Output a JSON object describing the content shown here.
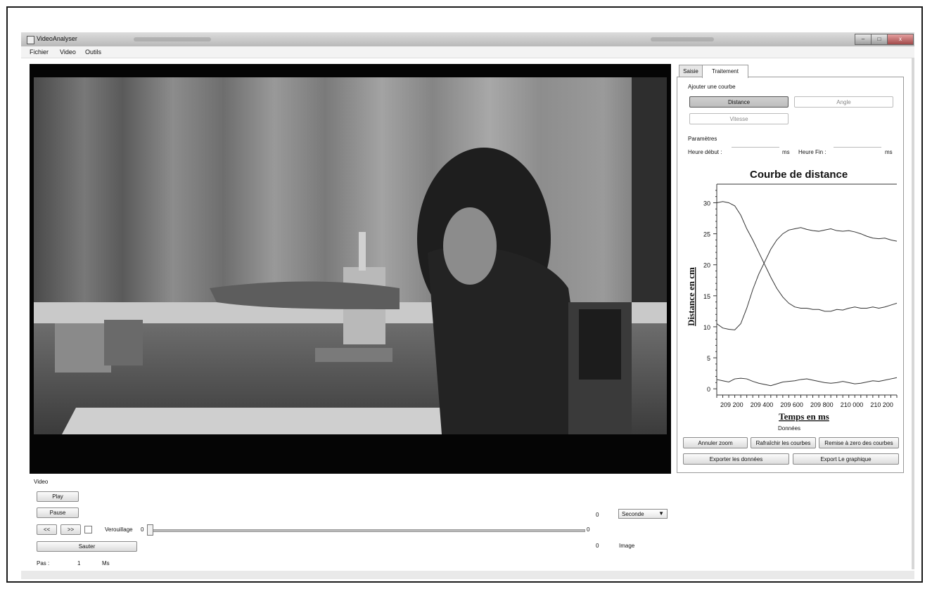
{
  "window": {
    "title": "VideoAnalyser",
    "buttons": {
      "minimize": "–",
      "maximize": "□",
      "close": "x"
    }
  },
  "menu": {
    "items": [
      "Fichier",
      "Video",
      "Outils"
    ]
  },
  "tabs": [
    "Saisie",
    "Traitement"
  ],
  "traitement": {
    "add_curve_label": "Ajouter une courbe",
    "buttons": {
      "distance": "Distance",
      "angle": "Angle",
      "vitesse": "Vitesse"
    },
    "params_label": "Paramètres",
    "start_label": "Heure début :",
    "end_label": "Heure Fin :",
    "start_unit": "ms",
    "end_unit": "ms",
    "data_label": "Données",
    "actions": {
      "cancel_zoom": "Annuler zoom",
      "refresh": "Rafraîchir les courbes",
      "reset": "Remise à zero des courbes",
      "export_data": "Exporter les données",
      "export_graph": "Export Le graphique"
    }
  },
  "chart_data": {
    "type": "line",
    "title": "Courbe de distance",
    "xlabel": "Temps en ms",
    "ylabel": "Distance en cm",
    "ylim": [
      -1,
      33
    ],
    "y_ticks": [
      0,
      5,
      10,
      15,
      20,
      25,
      30
    ],
    "x_tick_labels": [
      "209 200",
      "209 400",
      "209 600",
      "209 800",
      "210 000",
      "210 200"
    ],
    "x": [
      209100,
      209140,
      209180,
      209220,
      209260,
      209300,
      209340,
      209380,
      209420,
      209460,
      209500,
      209540,
      209580,
      209620,
      209660,
      209700,
      209740,
      209780,
      209820,
      209860,
      209900,
      209940,
      209980,
      210020,
      210060,
      210100,
      210140,
      210180,
      210220,
      210260,
      210300
    ],
    "x_range": [
      209100,
      210300
    ],
    "grid": false,
    "series": [
      {
        "values": [
          30,
          30.2,
          30,
          29.5,
          28,
          25.8,
          24,
          22,
          20,
          18,
          16.2,
          14.8,
          13.8,
          13.2,
          13,
          13,
          12.8,
          12.8,
          12.5,
          12.5,
          12.8,
          12.7,
          13,
          13.2,
          13,
          13,
          13.2,
          13,
          13.2,
          13.5,
          13.8
        ]
      },
      {
        "values": [
          10.5,
          9.8,
          9.6,
          9.5,
          10.5,
          13,
          16,
          18.5,
          20.5,
          22.5,
          24,
          25,
          25.6,
          25.8,
          26,
          25.7,
          25.5,
          25.4,
          25.6,
          25.8,
          25.5,
          25.4,
          25.5,
          25.3,
          25,
          24.6,
          24.3,
          24.2,
          24.3,
          24,
          23.8
        ]
      },
      {
        "values": [
          1.5,
          1.3,
          1.1,
          1.6,
          1.7,
          1.6,
          1.2,
          0.9,
          0.7,
          0.5,
          0.8,
          1.1,
          1.2,
          1.3,
          1.5,
          1.6,
          1.4,
          1.2,
          1.0,
          0.9,
          1.0,
          1.2,
          1.0,
          0.8,
          0.9,
          1.1,
          1.3,
          1.2,
          1.4,
          1.6,
          1.8
        ]
      }
    ]
  },
  "video_controls": {
    "section_label": "Video",
    "play": "Play",
    "pause": "Pause",
    "prev": "<<",
    "next": ">>",
    "lock_label": "Verouillage",
    "slider_min": "0",
    "slider_value_right": "0",
    "jump": "Sauter",
    "step_label": "Pas :",
    "step_value": "1",
    "step_unit": "Ms",
    "seconds_value": "0",
    "unit_select": "Seconde",
    "image_value": "0",
    "image_label": "Image"
  },
  "colors": {
    "chart_line": "#333333",
    "video_bg": "#050505"
  }
}
